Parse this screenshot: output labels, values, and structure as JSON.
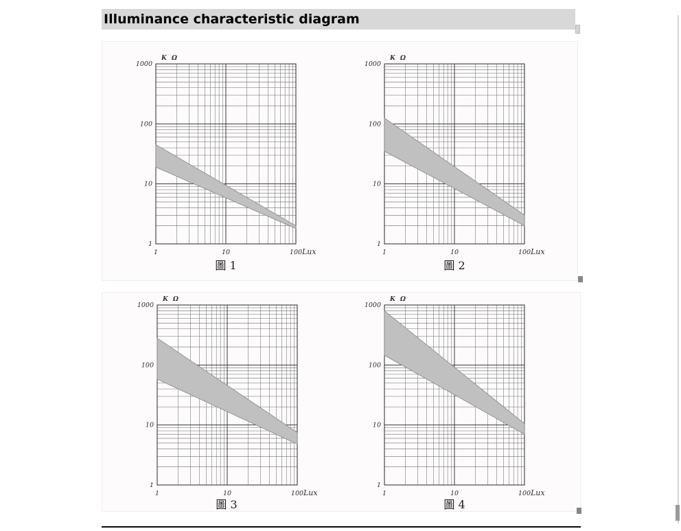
{
  "page": {
    "title": "Illuminance characteristic diagram"
  },
  "colors": {
    "title_bar_bg": "#d8d8d8",
    "figure_bg": "#fdfbfb",
    "band_fill": "#c0c0c0",
    "band_edge": "#8f8f8f",
    "grid_major": "#3a3a3a",
    "grid_minor": "#6f6f6f",
    "tick_text": "#2e2e2e"
  },
  "chart_data": [
    {
      "type": "area",
      "caption": "圖 1",
      "scale": "log-log",
      "y_unit": "K Ω",
      "x_unit": "Lux",
      "x_range": [
        1,
        100
      ],
      "y_range": [
        1,
        1000
      ],
      "x_ticks": [
        1,
        10,
        100
      ],
      "y_ticks": [
        1,
        10,
        100,
        1000
      ],
      "grid": "log major + minor (2-9 per decade)",
      "series": [
        {
          "name": "resistance-upper-limit",
          "points": [
            [
              1,
              45
            ],
            [
              100,
              2.0
            ]
          ]
        },
        {
          "name": "resistance-lower-limit",
          "points": [
            [
              1,
              19
            ],
            [
              100,
              1.8
            ]
          ]
        }
      ]
    },
    {
      "type": "area",
      "caption": "圖 2",
      "scale": "log-log",
      "y_unit": "K Ω",
      "x_unit": "Lux",
      "x_range": [
        1,
        100
      ],
      "y_range": [
        1,
        1000
      ],
      "x_ticks": [
        1,
        10,
        100
      ],
      "y_ticks": [
        1,
        10,
        100,
        1000
      ],
      "grid": "log major + minor (2-9 per decade)",
      "series": [
        {
          "name": "resistance-upper-limit",
          "points": [
            [
              1,
              125
            ],
            [
              100,
              3.0
            ]
          ]
        },
        {
          "name": "resistance-lower-limit",
          "points": [
            [
              1,
              35
            ],
            [
              100,
              2.0
            ]
          ]
        }
      ]
    },
    {
      "type": "area",
      "caption": "圖 3",
      "scale": "log-log",
      "y_unit": "K Ω",
      "x_unit": "Lux",
      "x_range": [
        1,
        100
      ],
      "y_range": [
        1,
        1000
      ],
      "x_ticks": [
        1,
        10,
        100
      ],
      "y_ticks": [
        1,
        10,
        100,
        1000
      ],
      "grid": "log major + minor (2-9 per decade)",
      "series": [
        {
          "name": "resistance-upper-limit",
          "points": [
            [
              1,
              280
            ],
            [
              100,
              7.5
            ]
          ]
        },
        {
          "name": "resistance-lower-limit",
          "points": [
            [
              1,
              58
            ],
            [
              100,
              4.8
            ]
          ]
        }
      ]
    },
    {
      "type": "area",
      "caption": "圖 4",
      "scale": "log-log",
      "y_unit": "K Ω",
      "x_unit": "Lux",
      "x_range": [
        1,
        100
      ],
      "y_range": [
        1,
        1000
      ],
      "x_ticks": [
        1,
        10,
        100
      ],
      "y_ticks": [
        1,
        10,
        100,
        1000
      ],
      "grid": "log major + minor (2-9 per decade)",
      "series": [
        {
          "name": "resistance-upper-limit",
          "points": [
            [
              1,
              800
            ],
            [
              100,
              10.5
            ]
          ]
        },
        {
          "name": "resistance-lower-limit",
          "points": [
            [
              1,
              145
            ],
            [
              100,
              7.0
            ]
          ]
        }
      ]
    }
  ]
}
